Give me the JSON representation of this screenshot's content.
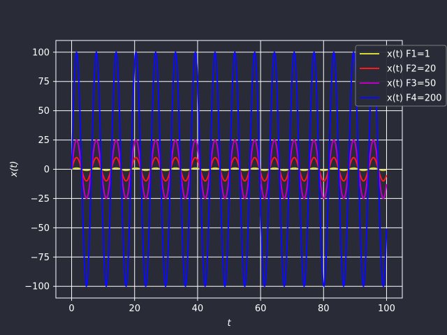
{
  "chart_data": {
    "type": "line",
    "title": "",
    "xlabel": "t",
    "ylabel": "x(t)",
    "xlim": [
      -5,
      105
    ],
    "ylim": [
      -110,
      110
    ],
    "xticks": [
      0,
      20,
      40,
      60,
      80,
      100
    ],
    "yticks": [
      -100,
      -75,
      -50,
      -25,
      0,
      25,
      50,
      75,
      100
    ],
    "grid": true,
    "legend_position": "top-right",
    "period": 6.2832,
    "x_samples": "0 to 100, 600 evenly spaced points",
    "series": [
      {
        "name": "x(t) F1=1",
        "color": "#d8d838",
        "amplitude": 1,
        "function": "sin(t)"
      },
      {
        "name": "x(t) F2=20",
        "color": "#ff1a1a",
        "amplitude": 10,
        "function": "10*sin(t)"
      },
      {
        "name": "x(t) F3=50",
        "color": "#c000c0",
        "amplitude": 25,
        "function": "25*sin(t)"
      },
      {
        "name": "x(t) F4=200",
        "color": "#0a0aff",
        "amplitude": 100,
        "function": "100*sin(t)"
      }
    ]
  },
  "colors": {
    "background": "#292c37",
    "grid": "#ffffff",
    "axes_frame": "#ffffff",
    "legend_background": "#292c37"
  }
}
